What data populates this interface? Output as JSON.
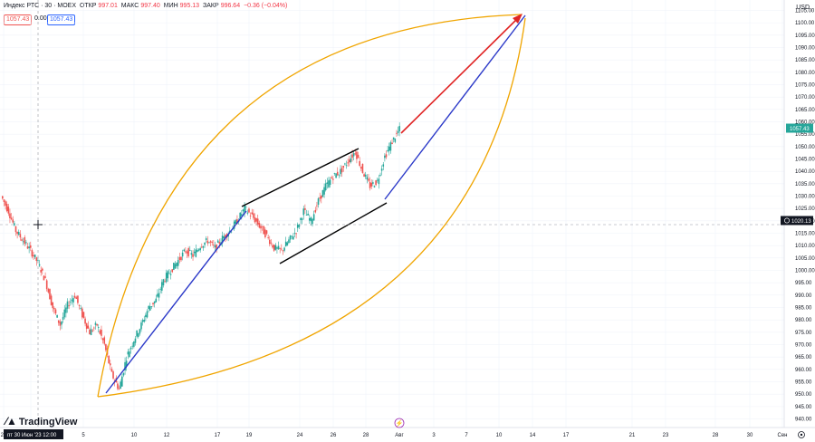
{
  "header": {
    "symbol": "Индекс РТС · 30 · MOEX",
    "open_label": "ОТКР",
    "open_value": "997.01",
    "high_label": "МАКС",
    "high_value": "997.40",
    "low_label": "МИН",
    "low_value": "995.13",
    "close_label": "ЗАКР",
    "close_value": "996.64",
    "change": "−0.36 (−0.04%)"
  },
  "badges": {
    "left": "1057.43",
    "middle": "0.00",
    "right": "1057.43"
  },
  "currency": "USD",
  "branding": "TradingView",
  "colors": {
    "up": "#26a69a",
    "down": "#ef5350",
    "curve": "#f0a500",
    "trend_blue": "#2b39c8",
    "arrow_red": "#e02424",
    "channel": "#000000",
    "price_tag": "#26a69a"
  },
  "chart_data": {
    "type": "candlestick",
    "ylim": [
      938,
      1107
    ],
    "yticks": [
      940,
      945,
      950,
      955,
      960,
      965,
      970,
      975,
      980,
      985,
      990,
      995,
      1000,
      1005,
      1010,
      1015,
      1020,
      1025,
      1030,
      1035,
      1040,
      1045,
      1050,
      1055,
      1060,
      1065,
      1070,
      1075,
      1080,
      1085,
      1090,
      1095,
      1100,
      1105
    ],
    "xticks": [
      "28",
      "пт 30 Июн '23",
      "5",
      "10",
      "12",
      "17",
      "19",
      "24",
      "26",
      "28",
      "Авг",
      "3",
      "7",
      "10",
      "14",
      "17",
      "21",
      "23",
      "28",
      "30",
      "Сен"
    ],
    "crosshair_date": "12:00",
    "crosshair_price": "1020.13",
    "last_price": "1057.43",
    "price_path": [
      [
        1030,
        1024
      ],
      [
        1024,
        1016
      ],
      [
        1016,
        1012
      ],
      [
        1012,
        1008
      ],
      [
        1008,
        1003
      ],
      [
        1003,
        996
      ],
      [
        996,
        985
      ],
      [
        985,
        978
      ],
      [
        978,
        986
      ],
      [
        986,
        990
      ],
      [
        990,
        982
      ],
      [
        982,
        975
      ],
      [
        975,
        978
      ],
      [
        978,
        970
      ],
      [
        970,
        958
      ],
      [
        958,
        952
      ],
      [
        952,
        965
      ],
      [
        965,
        972
      ],
      [
        972,
        978
      ],
      [
        978,
        985
      ],
      [
        985,
        988
      ],
      [
        988,
        996
      ],
      [
        996,
        1000
      ],
      [
        1000,
        1004
      ],
      [
        1004,
        1008
      ],
      [
        1008,
        1006
      ],
      [
        1006,
        1010
      ],
      [
        1010,
        1012
      ],
      [
        1012,
        1009
      ],
      [
        1009,
        1013
      ],
      [
        1013,
        1016
      ],
      [
        1016,
        1020
      ],
      [
        1020,
        1025
      ],
      [
        1025,
        1022
      ],
      [
        1022,
        1018
      ],
      [
        1018,
        1014
      ],
      [
        1014,
        1009
      ],
      [
        1009,
        1008
      ],
      [
        1008,
        1012
      ],
      [
        1012,
        1016
      ],
      [
        1016,
        1024
      ],
      [
        1024,
        1020
      ],
      [
        1020,
        1028
      ],
      [
        1028,
        1034
      ],
      [
        1034,
        1038
      ],
      [
        1038,
        1040
      ],
      [
        1040,
        1044
      ],
      [
        1044,
        1048
      ],
      [
        1048,
        1040
      ],
      [
        1040,
        1034
      ],
      [
        1034,
        1036
      ],
      [
        1036,
        1046
      ],
      [
        1046,
        1052
      ],
      [
        1052,
        1057
      ]
    ]
  }
}
